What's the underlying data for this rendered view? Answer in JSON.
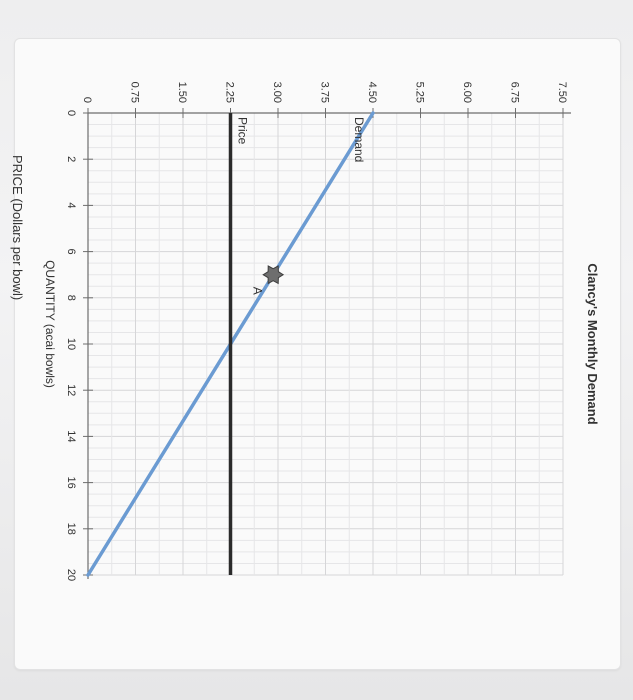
{
  "chart_data": {
    "type": "line",
    "title": "Clancy's Monthly Demand",
    "xlabel": "QUANTITY (acai bowls)",
    "ylabel": "PRICE (Dollars per bowl)",
    "xlim": [
      0,
      20
    ],
    "ylim": [
      0,
      7.5
    ],
    "x_ticks": [
      0,
      2,
      4,
      6,
      8,
      10,
      12,
      14,
      16,
      18,
      20
    ],
    "y_ticks": [
      0,
      0.75,
      1.5,
      2.25,
      3.0,
      3.75,
      4.5,
      5.25,
      6.0,
      6.75,
      7.5
    ],
    "x_tick_labels": [
      "0",
      "2",
      "4",
      "6",
      "8",
      "10",
      "12",
      "14",
      "16",
      "18",
      "20"
    ],
    "y_tick_labels": [
      "0",
      "0.75",
      "1.50",
      "2.25",
      "3.00",
      "3.75",
      "4.50",
      "5.25",
      "6.00",
      "6.75",
      "7.50"
    ],
    "grid": true,
    "series": [
      {
        "name": "Demand",
        "color": "#6b9bd2",
        "x": [
          0,
          20
        ],
        "y": [
          4.5,
          0
        ]
      },
      {
        "name": "Price",
        "color": "#2b2b2b",
        "x": [
          0,
          20
        ],
        "y": [
          2.25,
          2.25
        ]
      }
    ],
    "points": [
      {
        "label": "A",
        "x": 7,
        "y": 2.925
      }
    ],
    "rotation_degrees": 90
  }
}
